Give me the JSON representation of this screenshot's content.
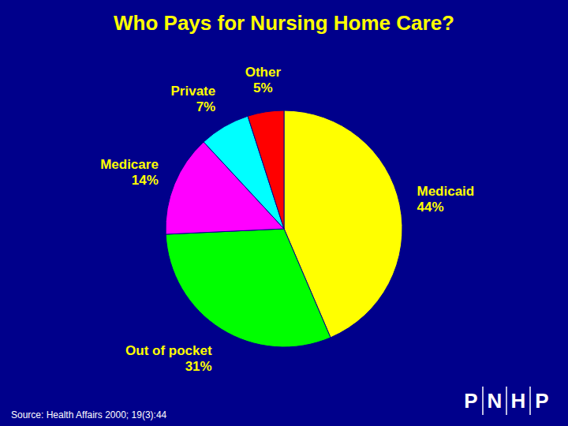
{
  "chart_data": {
    "type": "pie",
    "title": "Who Pays for Nursing Home Care?",
    "categories": [
      "Medicaid",
      "Out of pocket",
      "Medicare",
      "Private",
      "Other"
    ],
    "values": [
      44,
      31,
      14,
      7,
      5
    ],
    "value_labels": [
      "44%",
      "31%",
      "14%",
      "7%",
      "5%"
    ],
    "colors": [
      "#FFFF00",
      "#00FF00",
      "#FF00FF",
      "#00FFFF",
      "#FF0000"
    ],
    "data_labels": true,
    "annotations": [
      "Source: Health Affairs 2000; 19(3):44",
      "PNHP"
    ]
  }
}
